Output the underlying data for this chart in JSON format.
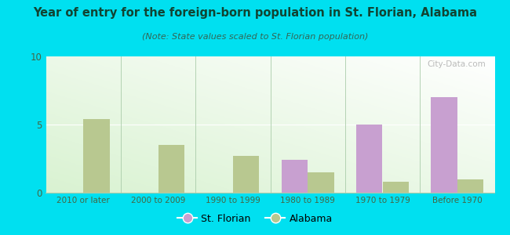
{
  "title": "Year of entry for the foreign-born population in St. Florian, Alabama",
  "subtitle": "(Note: State values scaled to St. Florian population)",
  "categories": [
    "2010 or later",
    "2000 to 2009",
    "1990 to 1999",
    "1980 to 1989",
    "1970 to 1979",
    "Before 1970"
  ],
  "st_florian": [
    0,
    0,
    0,
    2.4,
    5.0,
    7.0
  ],
  "alabama": [
    5.4,
    3.5,
    2.7,
    1.5,
    0.8,
    1.0
  ],
  "st_florian_color": "#c8a0d0",
  "alabama_color": "#b8c890",
  "background_outer": "#00e0f0",
  "ylim": [
    0,
    10
  ],
  "yticks": [
    0,
    5,
    10
  ],
  "bar_width": 0.35,
  "watermark": "City-Data.com"
}
